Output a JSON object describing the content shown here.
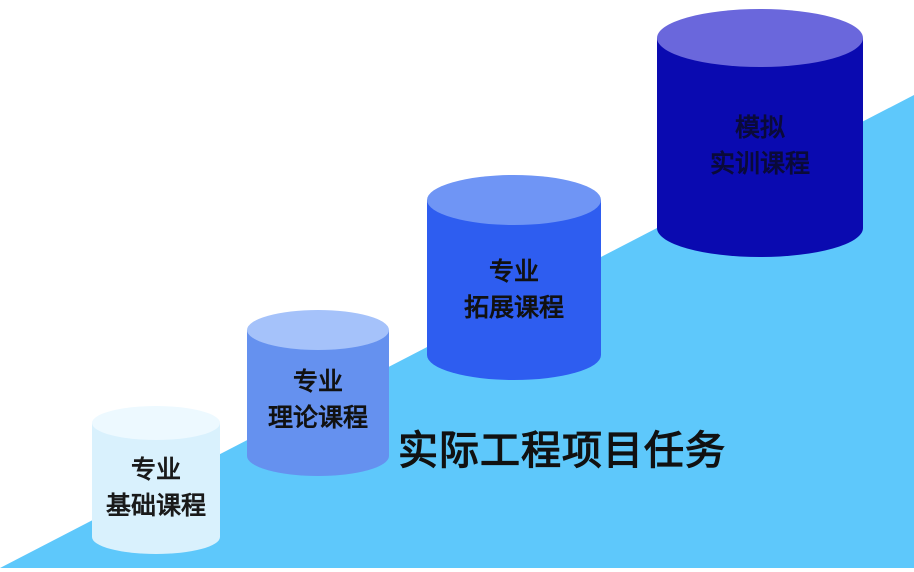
{
  "title": "实际工程项目任务",
  "colors": {
    "background": "#ffffff",
    "slope": "#5ec8fb",
    "title_text": "#111111"
  },
  "steps": [
    {
      "line1": "专业",
      "line2": "基础课程",
      "body_color": "#d9f1fd",
      "top_color": "#edf9ff",
      "text_color": "#1a1a1a"
    },
    {
      "line1": "专业",
      "line2": "理论课程",
      "body_color": "#6591ef",
      "top_color": "#a5c2fa",
      "text_color": "#111111"
    },
    {
      "line1": "专业",
      "line2": "拓展课程",
      "body_color": "#2e5df0",
      "top_color": "#6f95f5",
      "text_color": "#111111"
    },
    {
      "line1": "模拟",
      "line2": "实训课程",
      "body_color": "#0a0ab0",
      "top_color": "#6a67dc",
      "text_color": "#0a0a3a"
    }
  ]
}
